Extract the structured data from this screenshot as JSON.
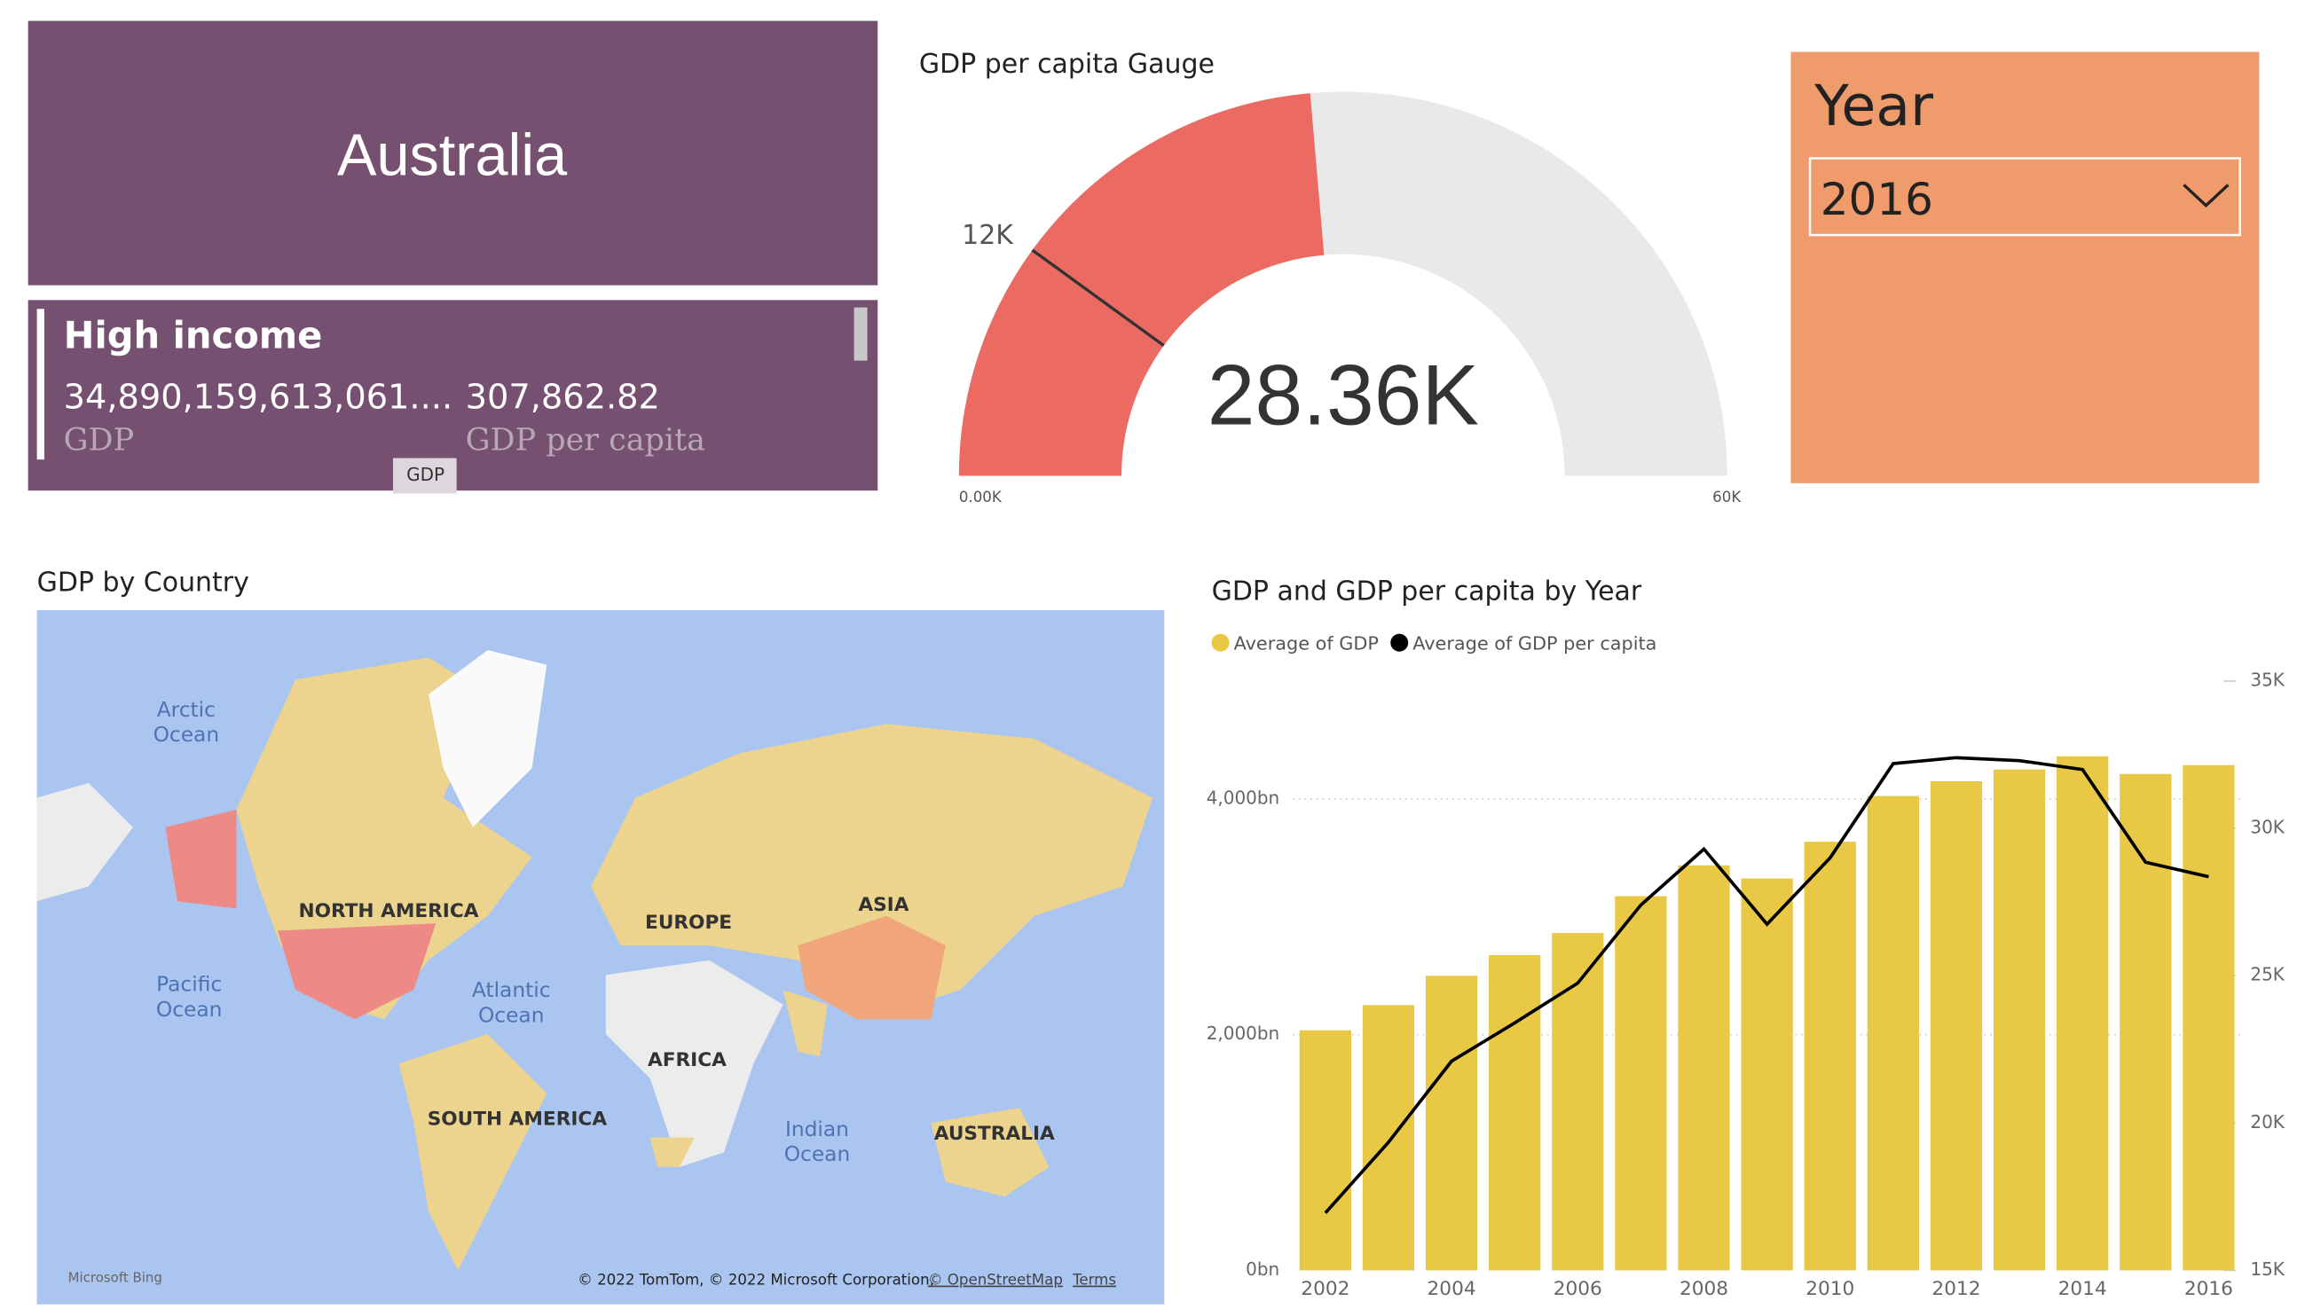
{
  "header": {
    "title": "Australia"
  },
  "card": {
    "income_group": "High income",
    "gdp": "34,890,159,613,061....",
    "gdp_per_capita": "307,862.82",
    "gdp_label": "GDP",
    "gdp_per_capita_label": "GDP per capita",
    "tooltip": "GDP"
  },
  "slicer": {
    "title": "Year",
    "selected": "2016"
  },
  "map": {
    "title": "GDP by Country",
    "labels": [
      {
        "lines": [
          "Arctic",
          "Ocean"
        ]
      },
      {
        "lines": [
          "NORTH AMERICA"
        ]
      },
      {
        "lines": [
          "EUROPE"
        ]
      },
      {
        "lines": [
          "ASIA"
        ]
      },
      {
        "lines": [
          "Pacific",
          "Ocean"
        ]
      },
      {
        "lines": [
          "Atlantic",
          "Ocean"
        ]
      },
      {
        "lines": [
          "AFRICA"
        ]
      },
      {
        "lines": [
          "SOUTH AMERICA"
        ]
      },
      {
        "lines": [
          "Indian",
          "Ocean"
        ]
      },
      {
        "lines": [
          "AUSTRALIA"
        ]
      }
    ],
    "provider": "Microsoft Bing",
    "copyright": "© 2022 TomTom, © 2022 Microsoft Corporation,",
    "osm": "© OpenStreetMap",
    "terms": "Terms"
  },
  "chart_data": [
    {
      "type": "gauge",
      "title": "GDP per capita Gauge",
      "value": 28360,
      "value_label": "28.36K",
      "target": 12000,
      "target_label": "12K",
      "xlim": [
        0,
        60000
      ],
      "xticks": [
        {
          "value": 0,
          "label": "0.00K"
        },
        {
          "value": 60000,
          "label": "60K"
        }
      ],
      "color": "#eb6a62",
      "track_color": "#e9e9e9"
    },
    {
      "type": "combo",
      "title": "GDP and  GDP per capita by Year",
      "categories": [
        "2002",
        null,
        "2004",
        null,
        "2006",
        null,
        "2008",
        null,
        "2010",
        null,
        "2012",
        null,
        "2014",
        null,
        "2016"
      ],
      "series": [
        {
          "name": "Average of GDP",
          "color": "#e8c845",
          "kind": "bar",
          "values": [
            2037,
            2250,
            2500,
            2675,
            2862,
            3175,
            3437,
            3325,
            3637,
            4025,
            4150,
            4250,
            4362,
            4212,
            4287
          ]
        },
        {
          "name": "Average of GDP per capita",
          "color": "#000000",
          "kind": "line",
          "axis": "y2",
          "values": [
            16950,
            19350,
            22100,
            23400,
            24750,
            27400,
            29300,
            26750,
            29000,
            32200,
            32400,
            32300,
            32000,
            28850,
            28360
          ]
        }
      ],
      "ylim": [
        0,
        5000
      ],
      "yticks": [
        {
          "value": 0,
          "label": "0bn"
        },
        {
          "value": 2000,
          "label": "2,000bn"
        },
        {
          "value": 4000,
          "label": "4,000bn"
        }
      ],
      "y2lim": [
        15000,
        35000
      ],
      "y2ticks": [
        {
          "value": 15000,
          "label": "15K"
        },
        {
          "value": 20000,
          "label": "20K"
        },
        {
          "value": 25000,
          "label": "25K"
        },
        {
          "value": 30000,
          "label": "30K"
        },
        {
          "value": 35000,
          "label": "35K"
        }
      ],
      "grid": true
    }
  ]
}
